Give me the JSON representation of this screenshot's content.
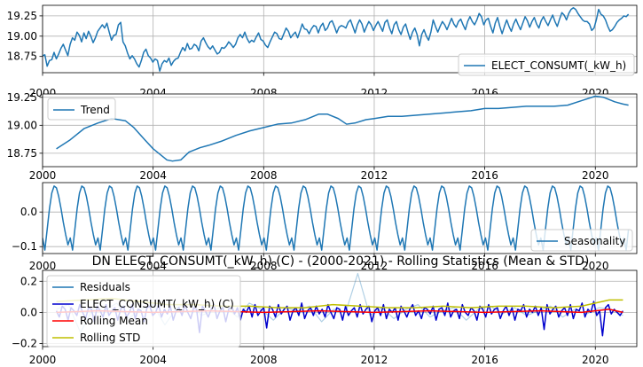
{
  "chart_data": [
    {
      "type": "line",
      "panel": "observed",
      "title": "",
      "xlabel": "",
      "ylabel": "",
      "xlim": [
        2000,
        2021.5
      ],
      "ylim": [
        18.55,
        19.38
      ],
      "xticks": [
        2000,
        2004,
        2008,
        2012,
        2016,
        2020
      ],
      "yticks": [
        18.75,
        19.0,
        19.25
      ],
      "ytick_labels": [
        "18.75",
        "19.00",
        "19.25"
      ],
      "grid": true,
      "legend_position": "lower-right",
      "series": [
        {
          "name": "ELECT_CONSUMT(_kW_h)",
          "color": "#1f77b4",
          "x_start": 2000.0,
          "x_end": 2021.2,
          "values": [
            18.76,
            18.77,
            18.63,
            18.7,
            18.71,
            18.8,
            18.72,
            18.78,
            18.85,
            18.9,
            18.83,
            18.76,
            18.9,
            18.98,
            18.95,
            19.05,
            19.01,
            18.93,
            19.04,
            18.97,
            19.06,
            19.0,
            18.92,
            18.98,
            19.06,
            19.1,
            19.14,
            19.1,
            19.16,
            19.05,
            18.95,
            19.01,
            19.02,
            19.14,
            19.17,
            18.93,
            18.88,
            18.79,
            18.72,
            18.76,
            18.72,
            18.66,
            18.62,
            18.7,
            18.8,
            18.84,
            18.76,
            18.73,
            18.68,
            18.72,
            18.7,
            18.57,
            18.66,
            18.7,
            18.68,
            18.73,
            18.64,
            18.69,
            18.72,
            18.73,
            18.8,
            18.86,
            18.82,
            18.91,
            18.84,
            18.85,
            18.9,
            18.88,
            18.82,
            18.94,
            18.98,
            18.92,
            18.87,
            18.84,
            18.88,
            18.83,
            18.78,
            18.8,
            18.86,
            18.85,
            18.88,
            18.93,
            18.9,
            18.86,
            18.9,
            18.98,
            19.02,
            18.98,
            19.05,
            18.97,
            18.92,
            18.95,
            18.93,
            18.99,
            19.04,
            18.96,
            18.94,
            18.89,
            18.86,
            18.93,
            18.99,
            19.05,
            19.03,
            18.97,
            18.96,
            19.03,
            19.1,
            19.06,
            18.98,
            19.02,
            19.05,
            18.98,
            19.06,
            19.15,
            19.09,
            19.08,
            19.03,
            19.09,
            19.13,
            19.12,
            19.04,
            19.12,
            19.16,
            19.07,
            19.1,
            19.17,
            19.19,
            19.12,
            19.04,
            19.11,
            19.13,
            19.12,
            19.1,
            19.17,
            19.2,
            19.12,
            19.04,
            19.14,
            19.2,
            19.15,
            19.05,
            19.12,
            19.18,
            19.14,
            19.07,
            19.13,
            19.18,
            19.12,
            19.06,
            19.17,
            19.2,
            19.1,
            19.03,
            19.14,
            19.18,
            19.08,
            19.02,
            19.11,
            19.15,
            19.05,
            18.96,
            19.05,
            19.1,
            19.02,
            18.88,
            19.02,
            19.08,
            19.0,
            18.95,
            19.05,
            19.2,
            19.12,
            19.05,
            19.12,
            19.18,
            19.14,
            19.08,
            19.15,
            19.22,
            19.15,
            19.11,
            19.18,
            19.21,
            19.14,
            19.08,
            19.18,
            19.24,
            19.18,
            19.14,
            19.2,
            19.28,
            19.24,
            19.14,
            19.2,
            19.22,
            19.12,
            19.04,
            19.16,
            19.23,
            19.12,
            19.03,
            19.12,
            19.2,
            19.12,
            19.06,
            19.15,
            19.21,
            19.14,
            19.08,
            19.16,
            19.24,
            19.19,
            19.11,
            19.18,
            19.23,
            19.15,
            19.1,
            19.19,
            19.24,
            19.18,
            19.13,
            19.2,
            19.26,
            19.18,
            19.12,
            19.21,
            19.29,
            19.26,
            19.2,
            19.28,
            19.33,
            19.35,
            19.33,
            19.28,
            19.24,
            19.2,
            19.18,
            19.18,
            19.15,
            19.07,
            19.1,
            19.2,
            19.33,
            19.27,
            19.25,
            19.2,
            19.12,
            19.06,
            19.08,
            19.12,
            19.17,
            19.2,
            19.22,
            19.25,
            19.24,
            19.27
          ]
        }
      ]
    },
    {
      "type": "line",
      "panel": "trend",
      "title": "",
      "xlabel": "",
      "ylabel": "",
      "xlim": [
        2000,
        2021.5
      ],
      "ylim": [
        18.63,
        19.28
      ],
      "xticks": [
        2000,
        2004,
        2008,
        2012,
        2016,
        2020
      ],
      "yticks": [
        18.75,
        19.0,
        19.25
      ],
      "ytick_labels": [
        "18.75",
        "19.00",
        "19.25"
      ],
      "grid": true,
      "legend_position": "top-left",
      "series": [
        {
          "name": "Trend",
          "color": "#1f77b4",
          "x": [
            2000.5,
            2001.0,
            2001.5,
            2002.0,
            2002.5,
            2003.0,
            2003.3,
            2003.7,
            2004.0,
            2004.5,
            2004.7,
            2005.0,
            2005.3,
            2005.7,
            2006.0,
            2006.5,
            2007.0,
            2007.5,
            2008.0,
            2008.5,
            2009.0,
            2009.5,
            2010.0,
            2010.3,
            2010.7,
            2011.0,
            2011.3,
            2011.7,
            2012.0,
            2012.5,
            2013.0,
            2013.5,
            2014.0,
            2014.5,
            2015.0,
            2015.5,
            2016.0,
            2016.5,
            2017.0,
            2017.5,
            2018.0,
            2018.5,
            2019.0,
            2019.5,
            2020.0,
            2020.3,
            2020.7,
            2021.0,
            2021.2
          ],
          "values": [
            18.79,
            18.87,
            18.97,
            19.02,
            19.06,
            19.04,
            18.98,
            18.87,
            18.79,
            18.69,
            18.68,
            18.69,
            18.76,
            18.8,
            18.82,
            18.86,
            18.91,
            18.95,
            18.98,
            19.01,
            19.02,
            19.05,
            19.1,
            19.1,
            19.06,
            19.01,
            19.02,
            19.05,
            19.06,
            19.08,
            19.08,
            19.09,
            19.1,
            19.11,
            19.12,
            19.13,
            19.15,
            19.15,
            19.16,
            19.17,
            19.17,
            19.17,
            19.18,
            19.22,
            19.26,
            19.25,
            19.21,
            19.19,
            19.18
          ]
        }
      ]
    },
    {
      "type": "line",
      "panel": "seasonality",
      "title": "",
      "xlabel": "",
      "ylabel": "",
      "xlim": [
        2000,
        2021.5
      ],
      "ylim": [
        -0.12,
        0.085
      ],
      "xticks": [
        2000,
        2004,
        2008,
        2012,
        2016,
        2020
      ],
      "yticks": [
        0.0,
        -0.1
      ],
      "ytick_labels": [
        "0.0",
        "−0.1"
      ],
      "grid": true,
      "legend_position": "lower-right",
      "series": [
        {
          "name": "Seasonality",
          "color": "#1f77b4",
          "x_start": 2000.0,
          "x_end": 2021.2,
          "pattern": [
            -0.075,
            -0.11,
            -0.05,
            0.01,
            0.055,
            0.075,
            0.07,
            0.045,
            0.01,
            -0.03,
            -0.065,
            -0.095
          ]
        }
      ]
    },
    {
      "type": "line",
      "panel": "residuals",
      "title": "DN ELECT_CONSUMT(_kW_h) (C) - (2000-2021) - Rolling Statistics (Mean & STD)",
      "xlabel": "",
      "ylabel": "",
      "xlim": [
        2000,
        2021.5
      ],
      "ylim": [
        -0.22,
        0.27
      ],
      "xticks": [
        2000,
        2004,
        2008,
        2012,
        2016,
        2020
      ],
      "yticks": [
        0.2,
        0.0,
        -0.2
      ],
      "ytick_labels": [
        "0.2",
        "0.0",
        "−0.2"
      ],
      "grid": true,
      "legend_position": "top-left",
      "series": [
        {
          "name": "Residuals",
          "color": "#1f77b4",
          "x_start": 2000.5,
          "x_end": 2021.0,
          "values": [
            0.02,
            0.05,
            -0.13,
            0.02,
            0.01,
            0.06,
            -0.04,
            0.02,
            0.05,
            -0.08,
            0.03,
            0.07,
            -0.02,
            0.01,
            0.04,
            -0.03,
            0.06,
            0.02,
            -0.05,
            0.03,
            0.01,
            0.04,
            -0.06,
            0.02,
            0.0,
            0.25,
            -0.02,
            0.03,
            -0.04,
            0.02,
            0.05,
            -0.03,
            0.01,
            0.03,
            -0.05,
            0.02,
            0.04,
            -0.01,
            0.03,
            -0.02,
            0.01,
            0.04,
            -0.03,
            0.02,
            -0.01,
            0.03,
            0.02,
            -0.02
          ]
        },
        {
          "name": "ELECT_CONSUMT(_kW_h) (C)",
          "color": "#0000cd",
          "x_start": 2000.5,
          "x_end": 2021.0,
          "values": [
            0.01,
            -0.03,
            0.04,
            0.02,
            -0.05,
            0.03,
            0.01,
            -0.02,
            0.05,
            0.0,
            -0.04,
            0.03,
            0.02,
            -0.06,
            0.04,
            0.01,
            -0.03,
            0.05,
            -0.02,
            0.01,
            0.03,
            -0.05,
            0.02,
            0.04,
            -0.03,
            0.0,
            0.05,
            -0.04,
            0.02,
            0.01,
            -0.06,
            0.03,
            0.04,
            -0.02,
            0.0,
            0.05,
            -0.03,
            0.02,
            -0.01,
            0.04,
            -0.05,
            0.01,
            0.03,
            -0.02,
            0.05,
            0.0,
            -0.04,
            0.03,
            0.02,
            -0.13,
            0.04,
            0.01,
            -0.03,
            0.02,
            0.05,
            -0.04,
            0.01,
            0.03,
            -0.06,
            0.02,
            0.04,
            -0.01,
            0.03,
            -0.05,
            0.02,
            0.0,
            0.04,
            -0.03,
            0.05,
            -0.02,
            0.01,
            0.03,
            -0.1,
            0.04,
            0.02,
            -0.03,
            0.05,
            -0.01,
            0.02,
            0.04,
            -0.05,
            0.01,
            0.03,
            -0.02,
            0.06,
            -0.04,
            0.01,
            0.03,
            -0.02,
            0.04,
            -0.01,
            0.02,
            -0.03,
            0.05,
            0.0,
            -0.04,
            0.03,
            0.02,
            -0.05,
            0.04,
            -0.02,
            0.01,
            0.03,
            -0.03,
            0.05,
            -0.01,
            0.02,
            0.04,
            -0.06,
            0.01,
            0.03,
            -0.02,
            0.05,
            -0.04,
            0.02,
            0.0,
            0.03,
            -0.05,
            0.04,
            0.01,
            -0.03,
            0.02,
            0.05,
            -0.02,
            0.01,
            -0.04,
            0.03,
            0.02,
            -0.01,
            0.04,
            -0.05,
            0.02,
            0.03,
            -0.02,
            0.06,
            -0.03,
            0.01,
            0.02,
            -0.04,
            0.05,
            0.0,
            -0.02,
            0.03,
            0.01,
            -0.05,
            0.04,
            0.02,
            -0.03,
            0.05,
            -0.01,
            0.02,
            0.03,
            -0.04,
            0.01,
            0.04,
            -0.02,
            0.03,
            -0.05,
            0.02,
            0.01,
            0.05,
            -0.03,
            0.02,
            0.0,
            0.04,
            -0.02,
            0.03,
            -0.11,
            0.05,
            -0.01,
            0.02,
            0.04,
            -0.03,
            0.01,
            0.03,
            -0.02,
            0.05,
            -0.04,
            0.02,
            0.01,
            0.06,
            -0.03,
            0.02,
            0.0,
            0.07,
            -0.02,
            0.01,
            -0.15,
            0.03,
            0.05,
            -0.01,
            0.02,
            0.0,
            -0.02,
            0.01
          ]
        },
        {
          "name": "Rolling Mean",
          "color": "#ff0000",
          "x": [
            2000.5,
            2002.0,
            2004.0,
            2006.0,
            2008.0,
            2010.0,
            2012.0,
            2014.0,
            2016.0,
            2018.0,
            2019.5,
            2020.0,
            2020.5,
            2021.0
          ],
          "values": [
            0.0,
            0.01,
            0.0,
            0.01,
            0.0,
            0.01,
            0.0,
            0.01,
            0.0,
            0.01,
            0.0,
            0.01,
            0.02,
            0.0
          ]
        },
        {
          "name": "Rolling STD",
          "color": "#bfbf00",
          "x": [
            2000.5,
            2001.5,
            2002.5,
            2003.5,
            2004.5,
            2005.5,
            2006.5,
            2007.5,
            2008.5,
            2009.5,
            2010.5,
            2011.5,
            2012.5,
            2013.5,
            2014.5,
            2015.5,
            2016.5,
            2017.5,
            2018.5,
            2019.5,
            2020.0,
            2020.5,
            2021.0
          ],
          "values": [
            0.07,
            0.08,
            0.09,
            0.07,
            0.05,
            0.05,
            0.04,
            0.04,
            0.03,
            0.03,
            0.05,
            0.04,
            0.03,
            0.03,
            0.04,
            0.03,
            0.04,
            0.04,
            0.03,
            0.04,
            0.06,
            0.08,
            0.08
          ]
        }
      ]
    }
  ]
}
